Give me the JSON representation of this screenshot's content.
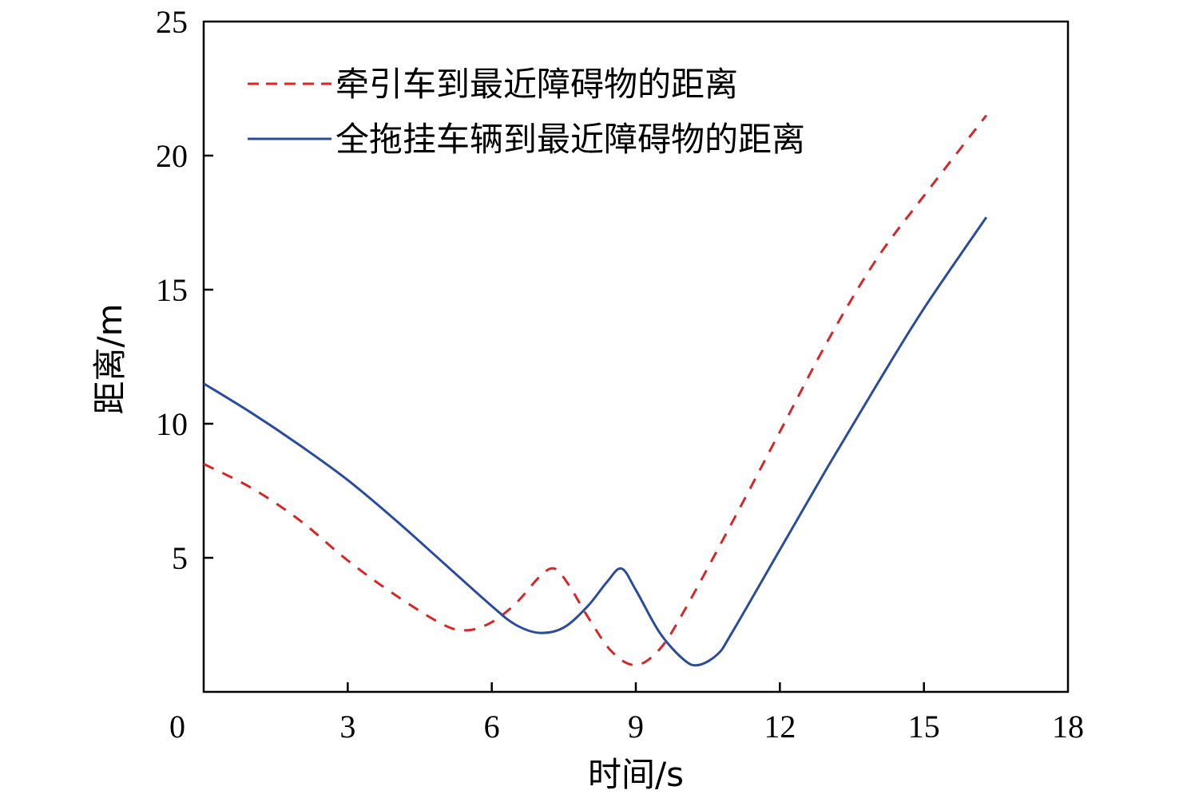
{
  "chart_data": {
    "type": "line",
    "title": "",
    "xlabel": "时间/s",
    "ylabel": "距离/m",
    "xlim": [
      0,
      18
    ],
    "ylim": [
      0,
      25
    ],
    "xticks": [
      "0",
      "3",
      "6",
      "9",
      "12",
      "15",
      "18"
    ],
    "yticks": [
      "5",
      "10",
      "15",
      "20",
      "25"
    ],
    "grid": false,
    "legend_position": "top-left",
    "series": [
      {
        "name": "牵引车到最近障碍物的距离",
        "color": "#d62728",
        "style": "dashed",
        "x": [
          0,
          1,
          2,
          3,
          4,
          5,
          5.5,
          6,
          6.5,
          7,
          7.3,
          7.6,
          8,
          8.5,
          9,
          9.5,
          10,
          11,
          12,
          13,
          14,
          15,
          16.3
        ],
        "y": [
          8.5,
          7.6,
          6.4,
          4.9,
          3.6,
          2.5,
          2.3,
          2.6,
          3.3,
          4.3,
          4.6,
          4.0,
          2.8,
          1.5,
          1.0,
          1.6,
          3.0,
          6.3,
          9.7,
          13.1,
          16.1,
          18.5,
          21.5
        ]
      },
      {
        "name": "全拖挂车辆到最近障碍物的距离",
        "color": "#2b4c9b",
        "style": "solid",
        "x": [
          0,
          1,
          2,
          3,
          4,
          5,
          6,
          6.5,
          7,
          7.5,
          8,
          8.4,
          8.7,
          9,
          9.5,
          10,
          10.3,
          10.7,
          11,
          12,
          13,
          14,
          15,
          16.3
        ],
        "y": [
          11.5,
          10.4,
          9.2,
          7.9,
          6.4,
          4.8,
          3.2,
          2.5,
          2.2,
          2.4,
          3.2,
          4.1,
          4.6,
          3.8,
          2.2,
          1.2,
          1.0,
          1.4,
          2.2,
          5.3,
          8.4,
          11.4,
          14.3,
          17.7
        ]
      }
    ]
  }
}
